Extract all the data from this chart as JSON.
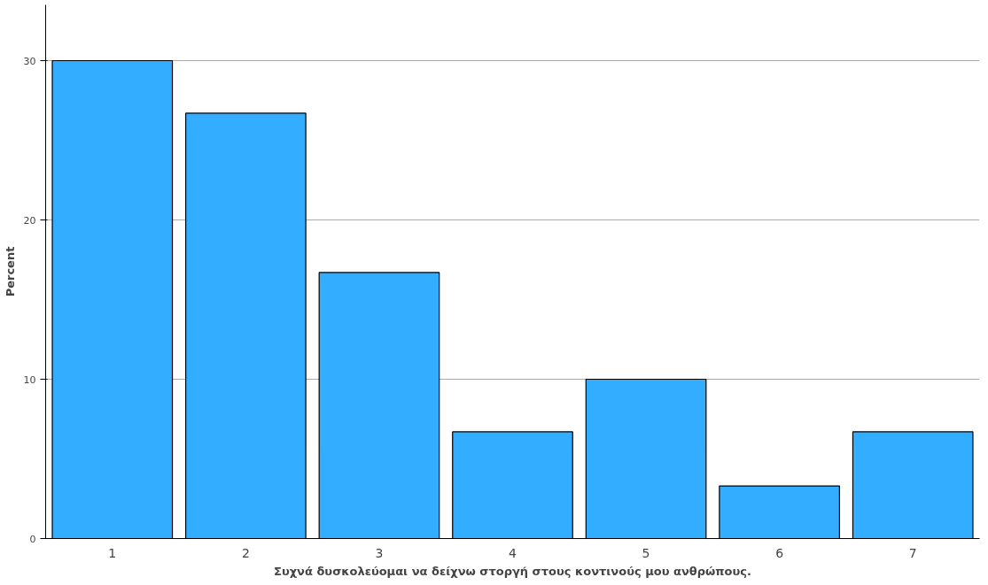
{
  "chart_data": {
    "type": "bar",
    "xlabel": "Συχνά δυσκολεύομαι να δείχνω στοργή στους κοντινούς μου ανθρώπους.",
    "ylabel": "Percent",
    "categories": [
      "1",
      "2",
      "3",
      "4",
      "5",
      "6",
      "7"
    ],
    "values": [
      30,
      26.7,
      16.7,
      6.7,
      10,
      3.3,
      6.7
    ],
    "color": "#33adff",
    "ylim": [
      0,
      33.5
    ],
    "yticks": [
      0,
      10,
      20,
      30
    ],
    "grid": "y"
  }
}
